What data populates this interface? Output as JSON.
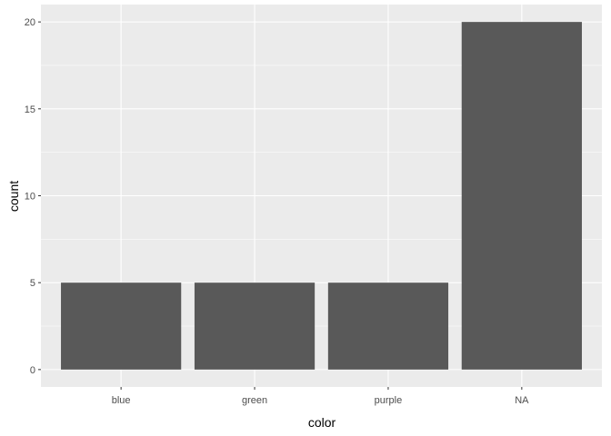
{
  "chart_data": {
    "type": "bar",
    "title": "",
    "xlabel": "color",
    "ylabel": "count",
    "categories": [
      "blue",
      "green",
      "purple",
      "NA"
    ],
    "values": [
      5,
      5,
      5,
      20
    ],
    "ylim": [
      -1,
      21
    ],
    "yticks": [
      0,
      5,
      10,
      15,
      20
    ],
    "grid": true,
    "colors": {
      "panel_background": "#EBEBEB",
      "grid_major": "#FFFFFF",
      "bar_fill": "#595959",
      "tick_text": "#4D4D4D",
      "axis_title": "#000000",
      "tick_mark": "#333333"
    }
  }
}
